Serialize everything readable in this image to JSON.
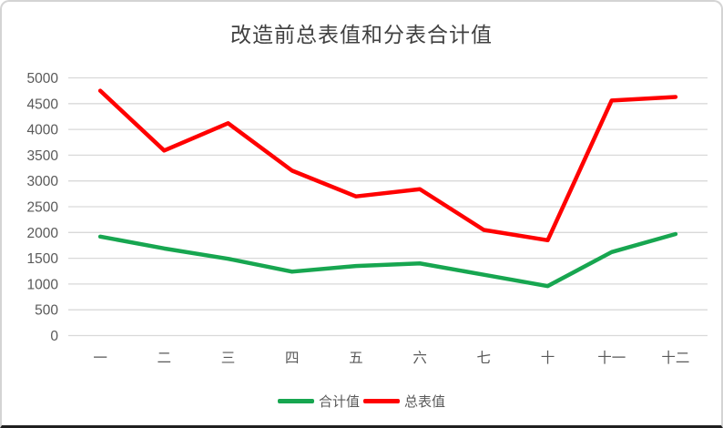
{
  "chart_data": {
    "type": "line",
    "title": "改造前总表值和分表合计值",
    "categories": [
      "一",
      "二",
      "三",
      "四",
      "五",
      "六",
      "七",
      "十",
      "十一",
      "十二"
    ],
    "series": [
      {
        "name": "合计值",
        "color": "#17a650",
        "values": [
          1920,
          1690,
          1490,
          1240,
          1350,
          1400,
          1180,
          960,
          1620,
          1970
        ]
      },
      {
        "name": "总表值",
        "color": "#ff0000",
        "values": [
          4750,
          3590,
          4120,
          3200,
          2700,
          2840,
          2050,
          1850,
          4560,
          4630
        ]
      }
    ],
    "ylim": [
      0,
      5000
    ],
    "ytick_step": 500,
    "ytick_labels": [
      "0",
      "500",
      "1000",
      "1500",
      "2000",
      "2500",
      "3000",
      "3500",
      "4000",
      "4500",
      "5000"
    ],
    "xlabel": "",
    "ylabel": "",
    "grid": "horizontal",
    "legend_position": "bottom"
  },
  "style_colors": {
    "gridline": "#d9d9d9",
    "axis_text": "#595959",
    "title_text": "#404040"
  }
}
